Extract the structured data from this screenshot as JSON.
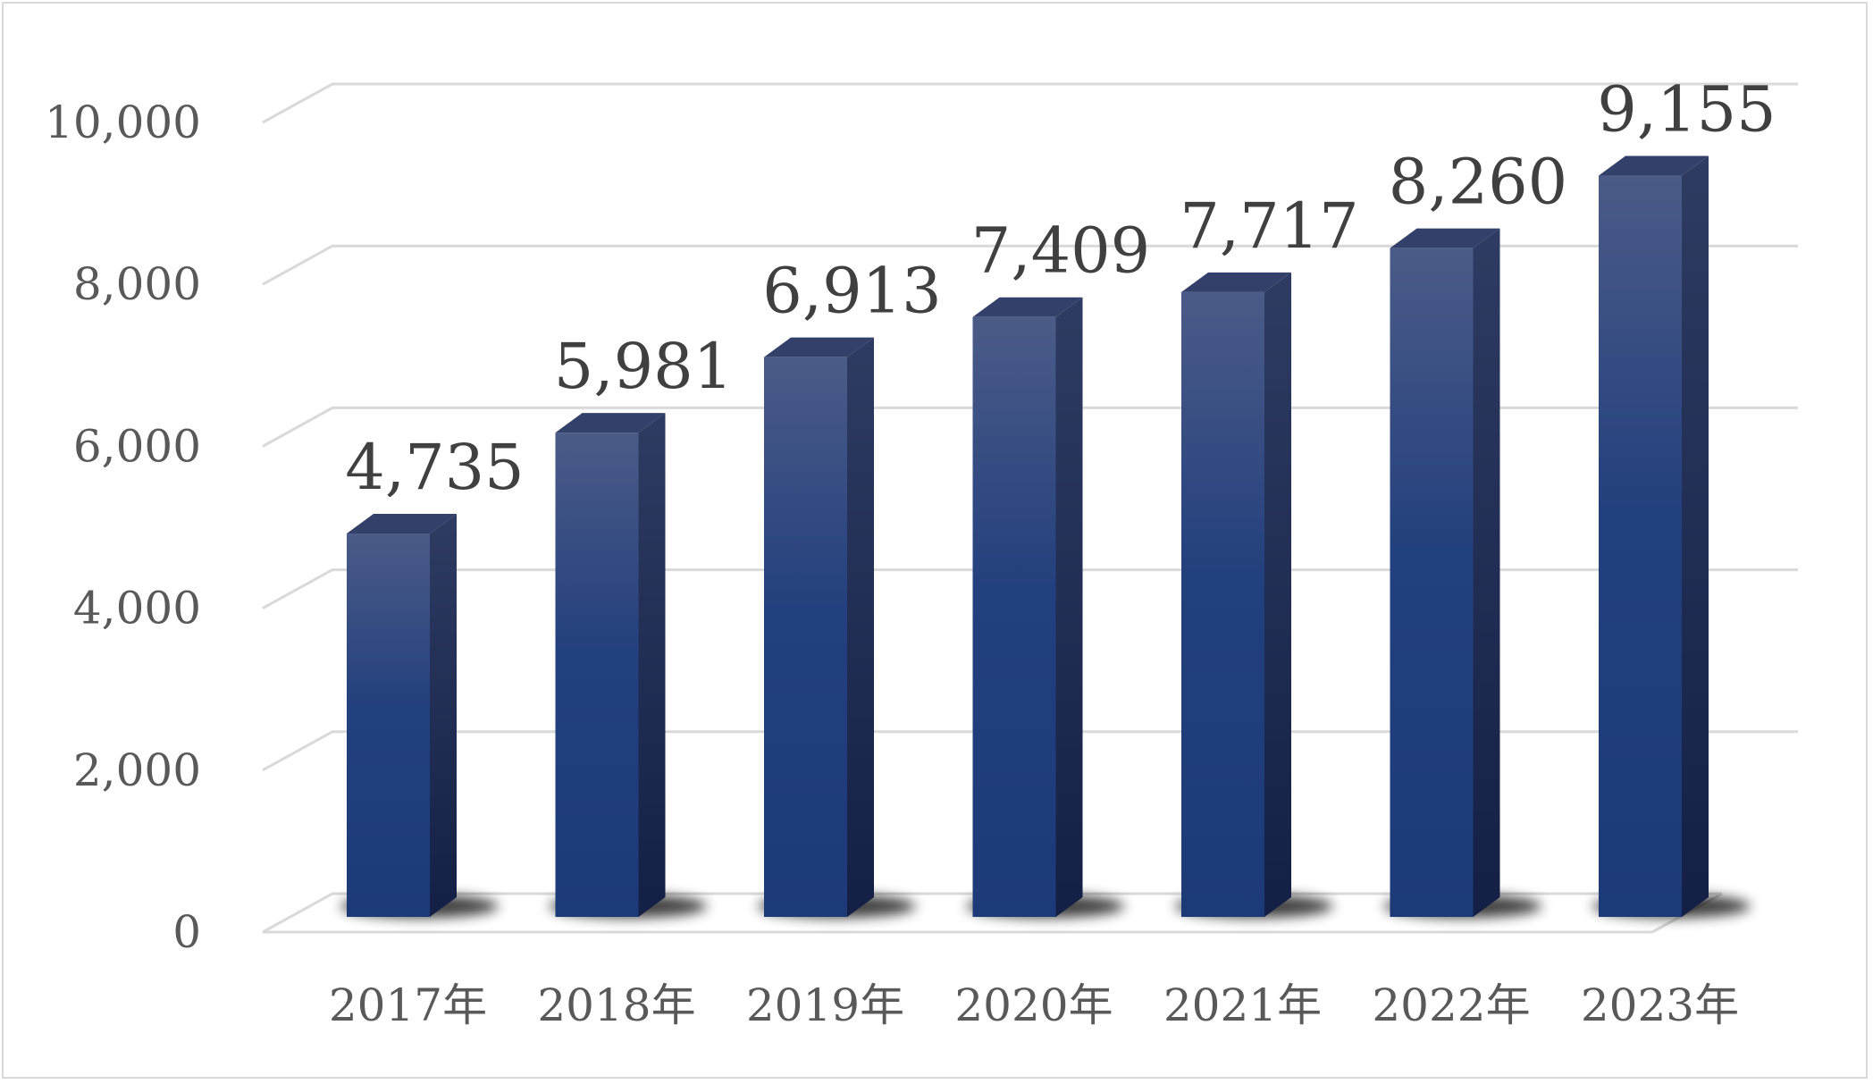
{
  "chart_data": {
    "type": "bar",
    "style": "3d-column",
    "title": "",
    "xlabel": "",
    "ylabel": "",
    "categories": [
      "2017年",
      "2018年",
      "2019年",
      "2020年",
      "2021年",
      "2022年",
      "2023年"
    ],
    "values": [
      4735,
      5981,
      6913,
      7409,
      7717,
      8260,
      9155
    ],
    "value_labels": [
      "4,735",
      "5,981",
      "6,913",
      "7,409",
      "7,717",
      "8,260",
      "9,155"
    ],
    "ylim": [
      0,
      10000
    ],
    "yticks": [
      0,
      2000,
      4000,
      6000,
      8000,
      10000
    ],
    "ytick_labels": [
      "0",
      "2,000",
      "4,000",
      "6,000",
      "8,000",
      "10,000"
    ],
    "grid": true,
    "legend": "none",
    "colors": {
      "bar_top": "#4a5a85",
      "bar_bottom": "#1f3a7a",
      "bar_side": "#1b2a55",
      "bar_cap": "#33406a",
      "grid": "#d9d9d9",
      "text": "#595959",
      "value_text": "#404040"
    }
  }
}
